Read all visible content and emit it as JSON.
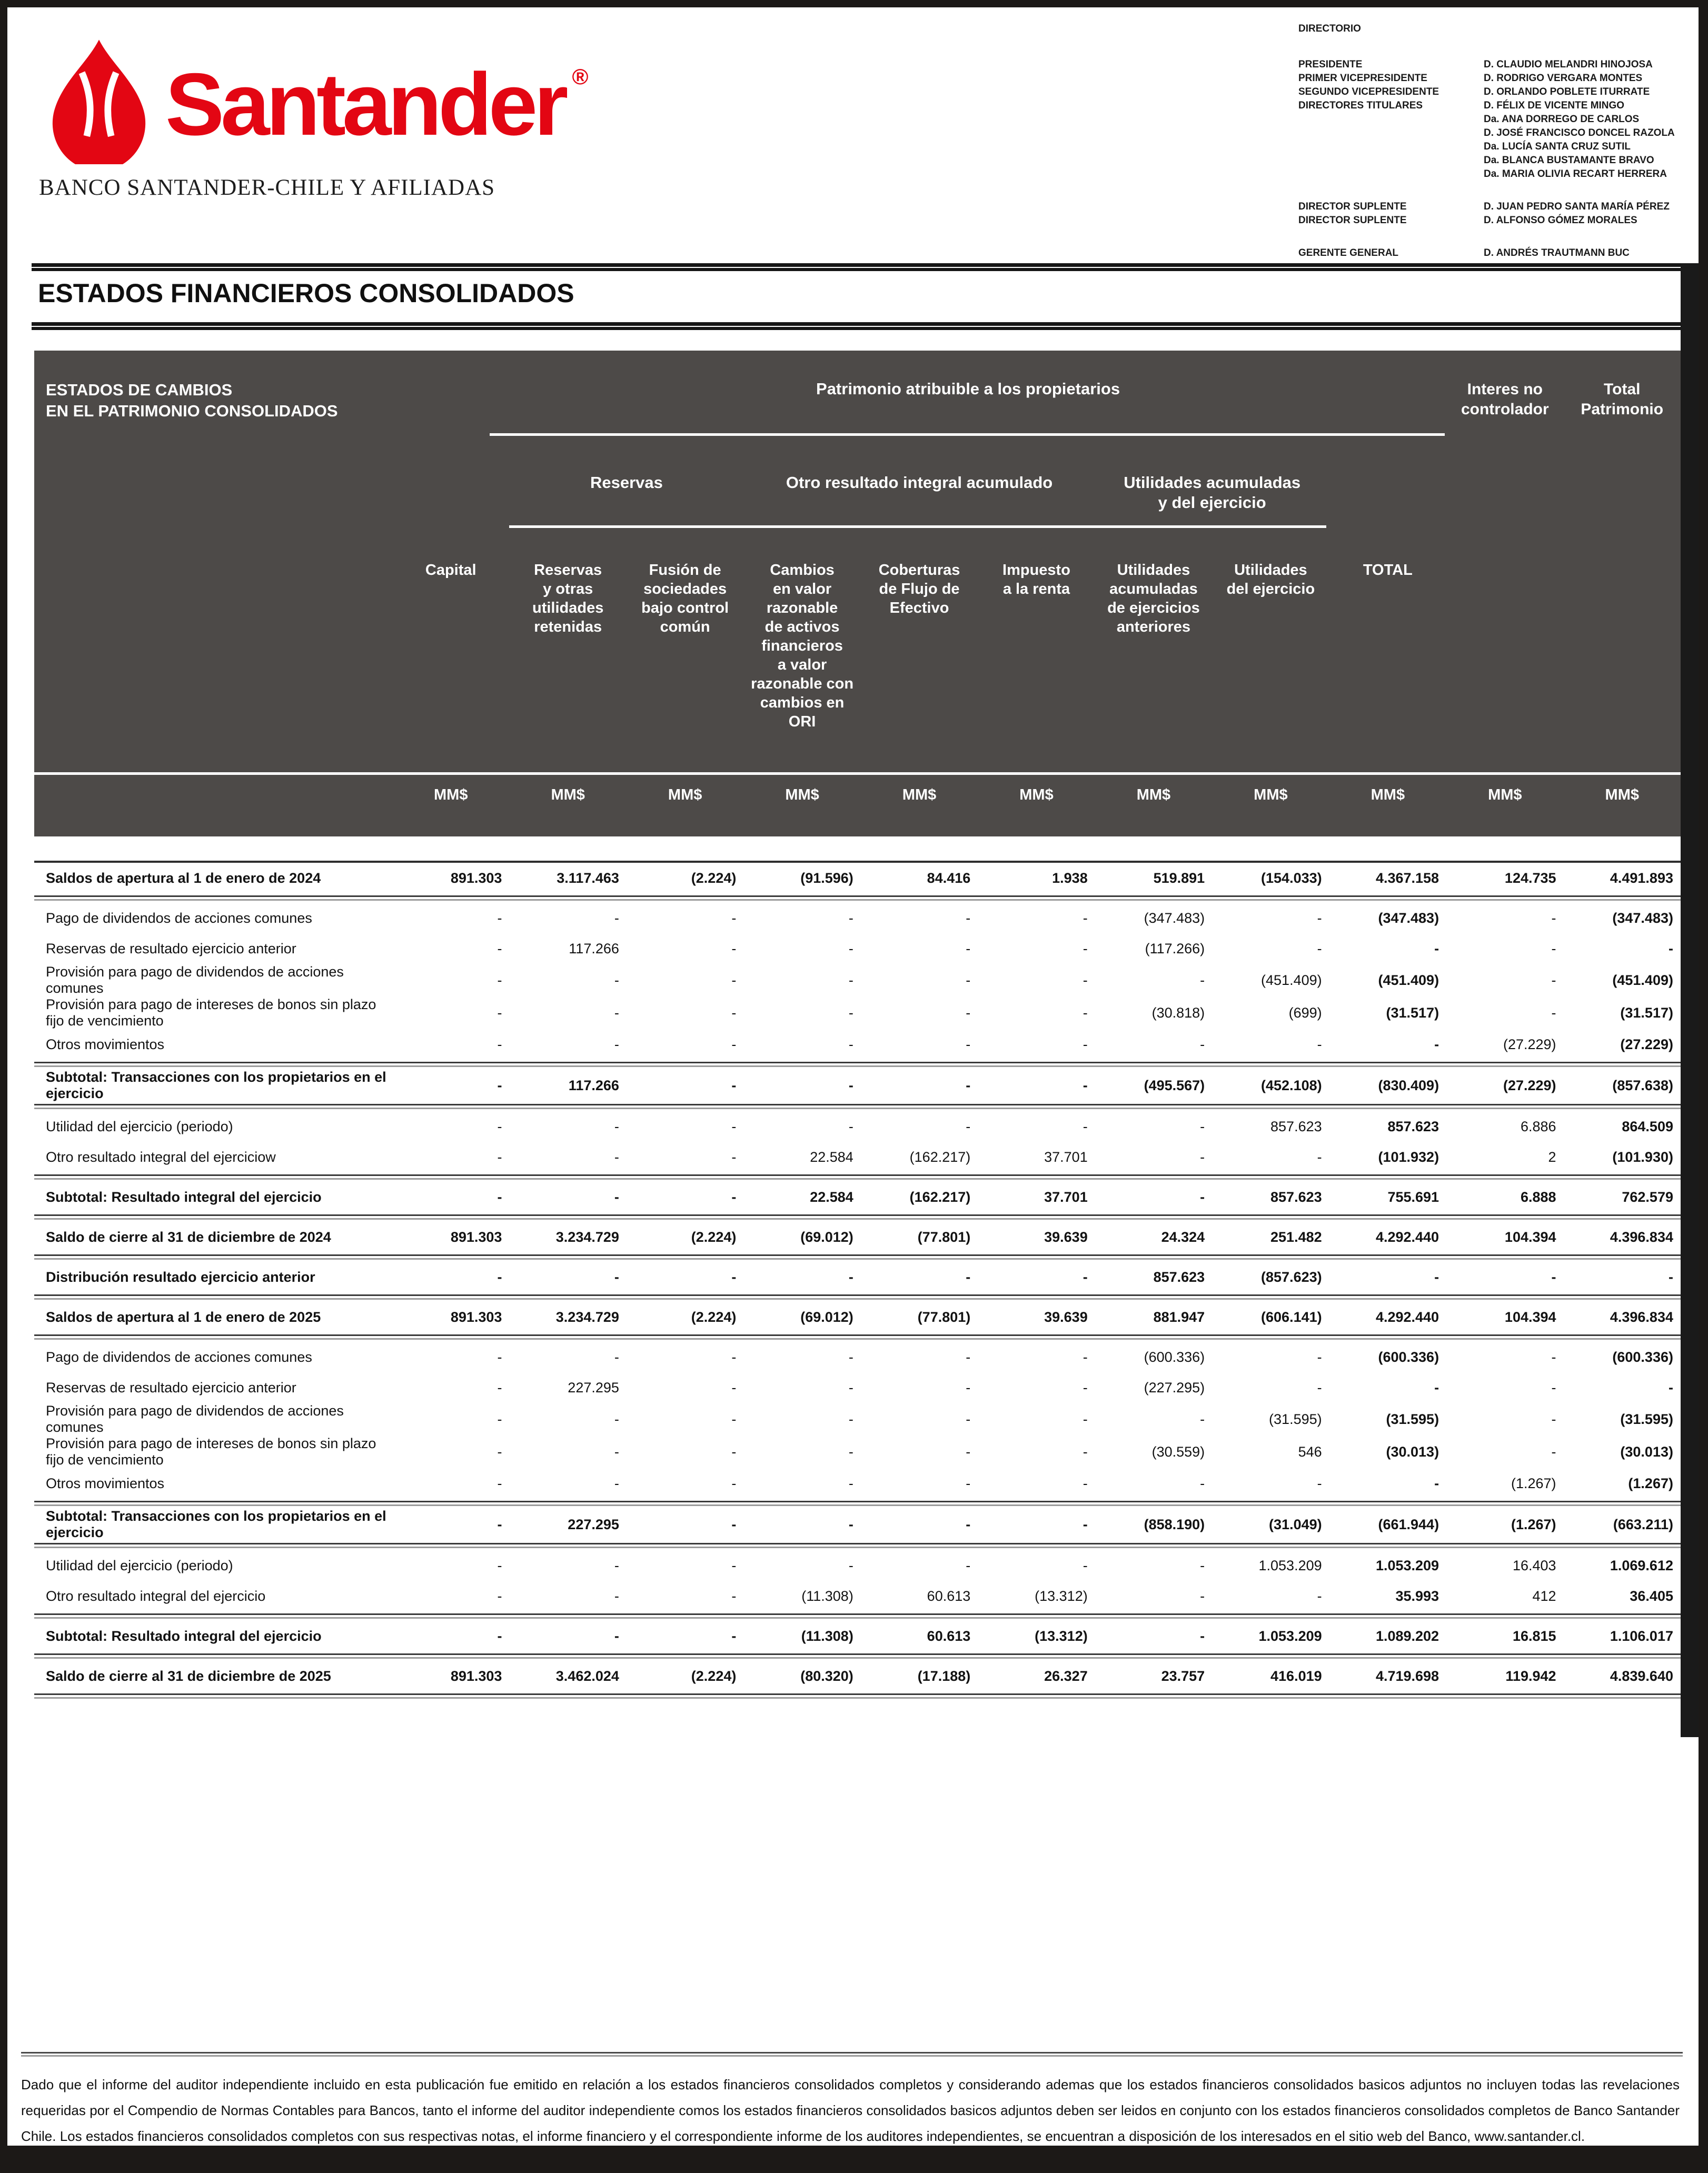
{
  "brand": {
    "logo_text": "Santander",
    "registered_mark": "®",
    "subtitle": "BANCO SANTANDER-CHILE Y AFILIADAS",
    "brand_red": "#e30613"
  },
  "directory": {
    "title": "DIRECTORIO",
    "groups": [
      {
        "label": "PRESIDENTE",
        "names": [
          "D. CLAUDIO MELANDRI HINOJOSA"
        ],
        "gap_before": false
      },
      {
        "label": "PRIMER VICEPRESIDENTE",
        "names": [
          "D. RODRIGO VERGARA MONTES"
        ],
        "gap_before": false
      },
      {
        "label": "SEGUNDO VICEPRESIDENTE",
        "names": [
          "D. ORLANDO POBLETE ITURRATE"
        ],
        "gap_before": false
      },
      {
        "label": "DIRECTORES TITULARES",
        "names": [
          "D. FÉLIX DE VICENTE MINGO",
          "Da. ANA DORREGO DE CARLOS",
          "D. JOSÉ FRANCISCO DONCEL RAZOLA",
          "Da. LUCÍA SANTA CRUZ SUTIL",
          "Da. BLANCA BUSTAMANTE BRAVO",
          "Da. MARIA OLIVIA RECART HERRERA"
        ],
        "gap_before": false
      },
      {
        "label": "DIRECTOR SUPLENTE",
        "names": [
          "D. JUAN PEDRO SANTA MARÍA PÉREZ"
        ],
        "gap_before": true
      },
      {
        "label": "DIRECTOR SUPLENTE",
        "names": [
          "D. ALFONSO GÓMEZ MORALES"
        ],
        "gap_before": false
      },
      {
        "label": "GERENTE GENERAL",
        "names": [
          "D. ANDRÉS TRAUTMANN BUC"
        ],
        "gap_before": true
      }
    ]
  },
  "section_title": "ESTADOS FINANCIEROS CONSOLIDADOS",
  "table": {
    "title": "ESTADOS DE CAMBIOS\nEN EL PATRIMONIO CONSOLIDADOS",
    "group_top": "Patrimonio atribuible a los propietarios",
    "head_noncontrolling": "Interes no\ncontrolador",
    "head_total_equity": "Total\nPatrimonio",
    "group_reservas": "Reservas",
    "group_ori": "Otro resultado integral acumulado",
    "group_utilidades": "Utilidades acumuladas\ny del ejercicio",
    "columns": [
      "Capital",
      "Reservas\ny otras\nutilidades\nretenidas",
      "Fusión de\nsociedades\nbajo control\ncomún",
      "Cambios\nen valor\nrazonable\nde activos\nfinancieros\na valor\nrazonable con\ncambios en\nORI",
      "Coberturas\nde Flujo de\nEfectivo",
      "Impuesto\na la renta",
      "Utilidades\nacumuladas\nde ejercicios\nanteriores",
      "Utilidades\ndel ejercicio",
      "TOTAL"
    ],
    "unit": "MM$",
    "unit_count": 11,
    "rows": [
      {
        "label": "Saldos de apertura al 1 de enero de 2024",
        "bold": true,
        "sep_after": true,
        "values": [
          "891.303",
          "3.117.463",
          "(2.224)",
          "(91.596)",
          "84.416",
          "1.938",
          "519.891",
          "(154.033)",
          "4.367.158",
          "124.735",
          "4.491.893"
        ]
      },
      {
        "label": "Pago de dividendos de acciones comunes",
        "bold": false,
        "sep_after": false,
        "values": [
          "-",
          "-",
          "-",
          "-",
          "-",
          "-",
          "(347.483)",
          "-",
          "(347.483)",
          "-",
          "(347.483)"
        ]
      },
      {
        "label": "Reservas de resultado ejercicio anterior",
        "bold": false,
        "sep_after": false,
        "values": [
          "-",
          "117.266",
          "-",
          "-",
          "-",
          "-",
          "(117.266)",
          "-",
          "-",
          "-",
          "-"
        ]
      },
      {
        "label": "Provisión para pago de dividendos de acciones comunes",
        "bold": false,
        "sep_after": false,
        "values": [
          "-",
          "-",
          "-",
          "-",
          "-",
          "-",
          "-",
          "(451.409)",
          "(451.409)",
          "-",
          "(451.409)"
        ]
      },
      {
        "label": "Provisión para pago de intereses de bonos sin plazo fijo de vencimiento",
        "bold": false,
        "sep_after": false,
        "values": [
          "-",
          "-",
          "-",
          "-",
          "-",
          "-",
          "(30.818)",
          "(699)",
          "(31.517)",
          "-",
          "(31.517)"
        ]
      },
      {
        "label": "Otros movimientos",
        "bold": false,
        "sep_after": true,
        "values": [
          "-",
          "-",
          "-",
          "-",
          "-",
          "-",
          "-",
          "-",
          "-",
          "(27.229)",
          "(27.229)"
        ]
      },
      {
        "label": "Subtotal: Transacciones con los propietarios en el ejercicio",
        "bold": true,
        "sep_after": true,
        "values": [
          "-",
          "117.266",
          "-",
          "-",
          "-",
          "-",
          "(495.567)",
          "(452.108)",
          "(830.409)",
          "(27.229)",
          "(857.638)"
        ]
      },
      {
        "label": "Utilidad del ejercicio (periodo)",
        "bold": false,
        "sep_after": false,
        "values": [
          "-",
          "-",
          "-",
          "-",
          "-",
          "-",
          "-",
          "857.623",
          "857.623",
          "6.886",
          "864.509"
        ]
      },
      {
        "label": "Otro resultado integral del ejerciciow",
        "bold": false,
        "sep_after": true,
        "values": [
          "-",
          "-",
          "-",
          "22.584",
          "(162.217)",
          "37.701",
          "-",
          "-",
          "(101.932)",
          "2",
          "(101.930)"
        ]
      },
      {
        "label": "Subtotal: Resultado integral del ejercicio",
        "bold": true,
        "sep_after": true,
        "values": [
          "-",
          "-",
          "-",
          "22.584",
          "(162.217)",
          "37.701",
          "-",
          "857.623",
          "755.691",
          "6.888",
          "762.579"
        ]
      },
      {
        "label": "Saldo de cierre al 31 de diciembre de 2024",
        "bold": true,
        "sep_after": true,
        "values": [
          "891.303",
          "3.234.729",
          "(2.224)",
          "(69.012)",
          "(77.801)",
          "39.639",
          "24.324",
          "251.482",
          "4.292.440",
          "104.394",
          "4.396.834"
        ]
      },
      {
        "label": "Distribución resultado ejercicio anterior",
        "bold": true,
        "sep_after": true,
        "values": [
          "-",
          "-",
          "-",
          "-",
          "-",
          "-",
          "857.623",
          "(857.623)",
          "-",
          "-",
          "-"
        ]
      },
      {
        "label": "Saldos de apertura al 1 de enero de 2025",
        "bold": true,
        "sep_after": true,
        "values": [
          "891.303",
          "3.234.729",
          "(2.224)",
          "(69.012)",
          "(77.801)",
          "39.639",
          "881.947",
          "(606.141)",
          "4.292.440",
          "104.394",
          "4.396.834"
        ]
      },
      {
        "label": "Pago de dividendos de acciones comunes",
        "bold": false,
        "sep_after": false,
        "values": [
          "-",
          "-",
          "-",
          "-",
          "-",
          "-",
          "(600.336)",
          "-",
          "(600.336)",
          "-",
          "(600.336)"
        ]
      },
      {
        "label": "Reservas de resultado ejercicio anterior",
        "bold": false,
        "sep_after": false,
        "values": [
          "-",
          "227.295",
          "-",
          "-",
          "-",
          "-",
          "(227.295)",
          "-",
          "-",
          "-",
          "-"
        ]
      },
      {
        "label": "Provisión para pago de dividendos de acciones comunes",
        "bold": false,
        "sep_after": false,
        "values": [
          "-",
          "-",
          "-",
          "-",
          "-",
          "-",
          "-",
          "(31.595)",
          "(31.595)",
          "-",
          "(31.595)"
        ]
      },
      {
        "label": "Provisión para pago de intereses de bonos sin plazo fijo de vencimiento",
        "bold": false,
        "sep_after": false,
        "values": [
          "-",
          "-",
          "-",
          "-",
          "-",
          "-",
          "(30.559)",
          "546",
          "(30.013)",
          "-",
          "(30.013)"
        ]
      },
      {
        "label": "Otros movimientos",
        "bold": false,
        "sep_after": true,
        "values": [
          "-",
          "-",
          "-",
          "-",
          "-",
          "-",
          "-",
          "-",
          "-",
          "(1.267)",
          "(1.267)"
        ]
      },
      {
        "label": "Subtotal: Transacciones con los propietarios en el ejercicio",
        "bold": true,
        "sep_after": true,
        "values": [
          "-",
          "227.295",
          "-",
          "-",
          "-",
          "-",
          "(858.190)",
          "(31.049)",
          "(661.944)",
          "(1.267)",
          "(663.211)"
        ]
      },
      {
        "label": "Utilidad del ejercicio (periodo)",
        "bold": false,
        "sep_after": false,
        "values": [
          "-",
          "-",
          "-",
          "-",
          "-",
          "-",
          "-",
          "1.053.209",
          "1.053.209",
          "16.403",
          "1.069.612"
        ]
      },
      {
        "label": "Otro resultado integral del ejercicio",
        "bold": false,
        "sep_after": true,
        "values": [
          "-",
          "-",
          "-",
          "(11.308)",
          "60.613",
          "(13.312)",
          "-",
          "-",
          "35.993",
          "412",
          "36.405"
        ]
      },
      {
        "label": "Subtotal: Resultado integral del ejercicio",
        "bold": true,
        "sep_after": true,
        "values": [
          "-",
          "-",
          "-",
          "(11.308)",
          "60.613",
          "(13.312)",
          "-",
          "1.053.209",
          "1.089.202",
          "16.815",
          "1.106.017"
        ]
      },
      {
        "label": "Saldo de cierre al 31 de diciembre de 2025",
        "bold": true,
        "sep_after": true,
        "values": [
          "891.303",
          "3.462.024",
          "(2.224)",
          "(80.320)",
          "(17.188)",
          "26.327",
          "23.757",
          "416.019",
          "4.719.698",
          "119.942",
          "4.839.640"
        ]
      }
    ]
  },
  "footer": {
    "paragraph": "Dado que el informe del auditor independiente incluido en esta publicación fue emitido en relación a los estados financieros consolidados completos y considerando ademas que los estados financieros consolidados basicos adjuntos no incluyen todas las revelaciones requeridas por el Compendio de Normas Contables para Bancos, tanto el informe del auditor independiente comos los estados financieros consolidados basicos adjuntos deben ser leidos en conjunto con los estados financieros consolidados completos de Banco Santander Chile. Los estados financieros consolidados completos con sus respectivas notas, el informe financiero y el correspondiente informe de los auditores independientes, se encuentran a disposición de los interesados en el sitio web del Banco, www.santander.cl."
  }
}
